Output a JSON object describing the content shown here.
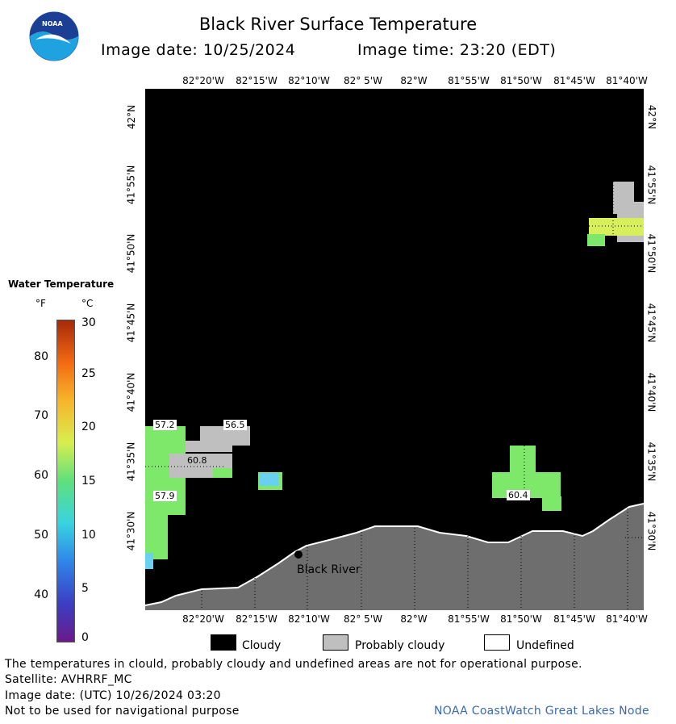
{
  "header": {
    "title": "Black River Surface Temperature",
    "image_date": "Image date: 10/25/2024",
    "image_time": "Image time: 23:20 (EDT)"
  },
  "logo": {
    "text": "NOAA",
    "icon": "noaa-logo"
  },
  "axes": {
    "longitudes": [
      "82°20'W",
      "82°15'W",
      "82°10'W",
      "82° 5'W",
      "82°W",
      "81°55'W",
      "81°50'W",
      "81°45'W",
      "81°40'W"
    ],
    "latitudes": [
      "42°N",
      "41°55'N",
      "41°50'N",
      "41°45'N",
      "41°40'N",
      "41°35'N",
      "41°30'N"
    ]
  },
  "map": {
    "location_label": "Black River",
    "temperature_labels": [
      "57.2",
      "56.5",
      "60.8",
      "57.9",
      "60.4"
    ],
    "colors": {
      "cloudy": "#000000",
      "probably_cloudy": "#bfbfbf",
      "land": "#6e6e6e",
      "warm_water": "#7de86a",
      "cool_water": "#6ad0f0"
    }
  },
  "legend": {
    "title": "Water Temperature",
    "unit_f": "°F",
    "unit_c": "°C",
    "ticks_f": [
      "80",
      "70",
      "60",
      "50",
      "40"
    ],
    "ticks_c": [
      "30",
      "25",
      "20",
      "15",
      "10",
      "5",
      "0"
    ]
  },
  "key": {
    "cloudy": "Cloudy",
    "probably_cloudy": "Probably cloudy",
    "undefined": "Undefined"
  },
  "footer": {
    "disclaimer": "The temperatures in clould, probably cloudy and undefined areas are not for operational purpose.",
    "satellite": "Satellite: AVHRRF_MC",
    "utc_date": "Image date: (UTC) 10/26/2024  03:20",
    "nav_warning": "Not to be used for navigational purpose",
    "credit": "NOAA CoastWatch Great Lakes Node"
  }
}
